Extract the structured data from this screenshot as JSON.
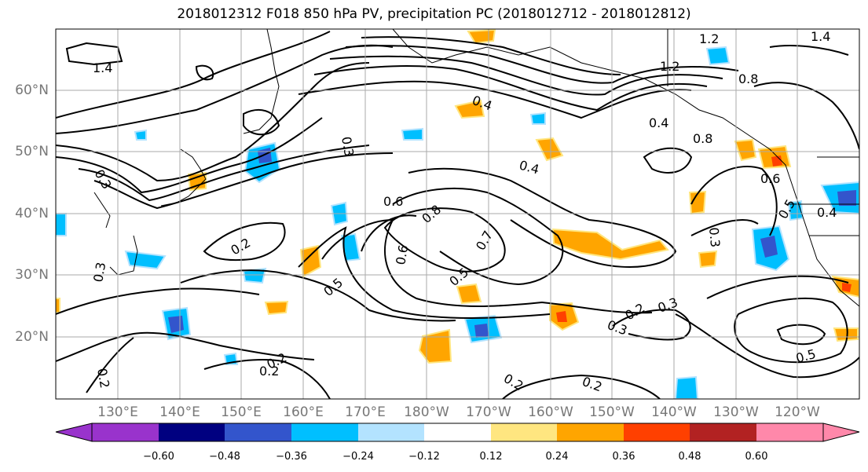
{
  "title": "2018012312 F018 850 hPa PV, precipitation PC (2018012712 - 2018012812)",
  "map": {
    "projection": "PlateCarree",
    "lat_labels": [
      "60°N",
      "50°N",
      "40°N",
      "30°N",
      "20°N"
    ],
    "lon_labels": [
      "130°E",
      "140°E",
      "150°E",
      "160°E",
      "170°E",
      "180°W",
      "170°W",
      "160°W",
      "150°W",
      "140°W",
      "130°W",
      "120°W"
    ],
    "gridlines": true,
    "contour_labels": [
      "1.4",
      "0.3",
      "0.4",
      "0.4",
      "0.6",
      "0.8",
      "0.7",
      "0.6",
      "0.5",
      "0.2",
      "0.5",
      "0.2",
      "0.2",
      "0.2",
      "0.2",
      "0.3",
      "0.3",
      "0.4",
      "0.8",
      "1.2",
      "1.2",
      "1.4",
      "0.3",
      "0.2",
      "0.5",
      "0.6",
      "0.8",
      "0.5",
      "0.4",
      "0.3",
      "0.3",
      "0.2"
    ]
  },
  "colorbar": {
    "tick_labels": [
      "−0.60",
      "−0.48",
      "−0.36",
      "−0.24",
      "−0.12",
      "0.12",
      "0.24",
      "0.36",
      "0.48",
      "0.60"
    ],
    "colors": [
      "#9933cc",
      "#000080",
      "#3355cc",
      "#00bfff",
      "#b3e3ff",
      "#ffffff",
      "#ffe680",
      "#ffa500",
      "#ff4000",
      "#b22222",
      "#ff88aa",
      "#ff88aa"
    ]
  }
}
